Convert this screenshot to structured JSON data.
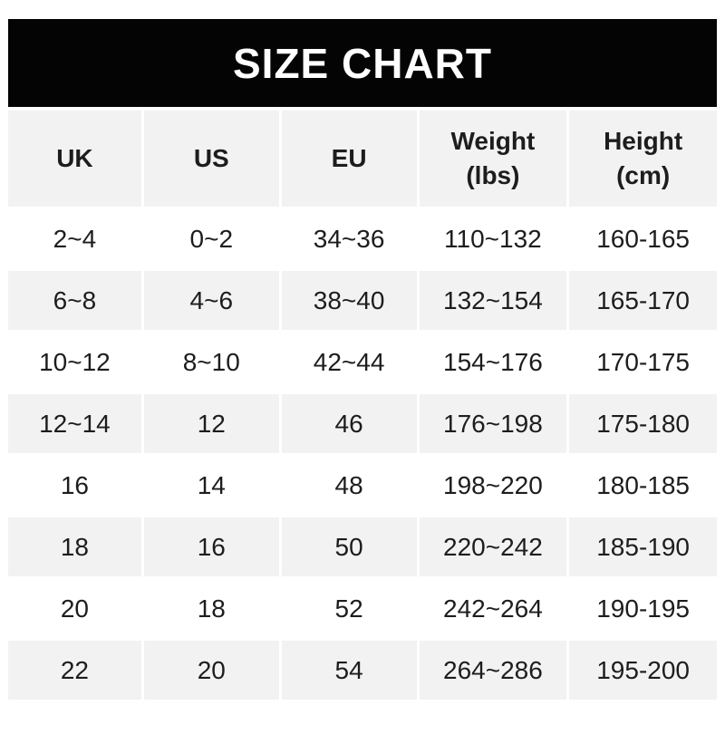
{
  "title": "SIZE CHART",
  "colors": {
    "banner_bg": "#040404",
    "banner_text": "#ffffff",
    "row_gray": "#f2f2f2",
    "row_white": "#ffffff",
    "text": "#1d1d1d"
  },
  "table": {
    "columns": [
      {
        "label": "UK",
        "sublabel": ""
      },
      {
        "label": "US",
        "sublabel": ""
      },
      {
        "label": "EU",
        "sublabel": ""
      },
      {
        "label": "Weight",
        "sublabel": "(lbs)"
      },
      {
        "label": "Height",
        "sublabel": "(cm)"
      }
    ],
    "rows": [
      [
        "2~4",
        "0~2",
        "34~36",
        "110~132",
        "160-165"
      ],
      [
        "6~8",
        "4~6",
        "38~40",
        "132~154",
        "165-170"
      ],
      [
        "10~12",
        "8~10",
        "42~44",
        "154~176",
        "170-175"
      ],
      [
        "12~14",
        "12",
        "46",
        "176~198",
        "175-180"
      ],
      [
        "16",
        "14",
        "48",
        "198~220",
        "180-185"
      ],
      [
        "18",
        "16",
        "50",
        "220~242",
        "185-190"
      ],
      [
        "20",
        "18",
        "52",
        "242~264",
        "190-195"
      ],
      [
        "22",
        "20",
        "54",
        "264~286",
        "195-200"
      ]
    ]
  }
}
